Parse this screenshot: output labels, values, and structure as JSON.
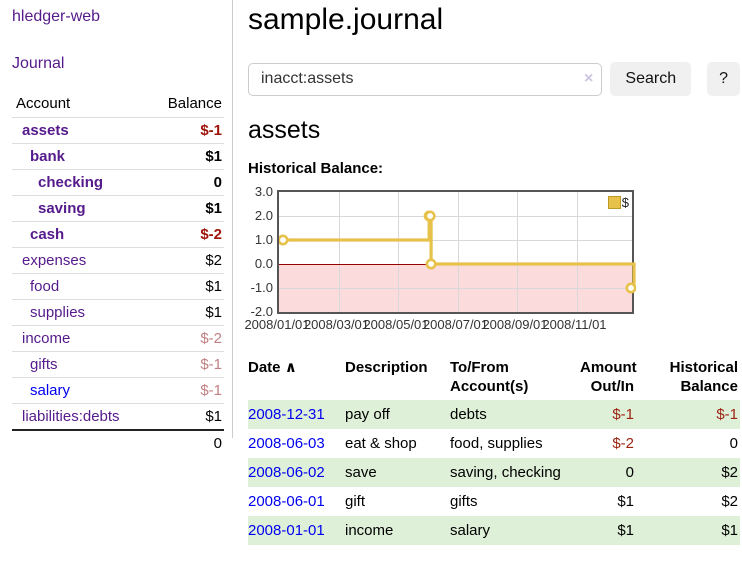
{
  "app": {
    "title": "hledger-web",
    "nav_journal": "Journal"
  },
  "sidebar": {
    "headers": {
      "account": "Account",
      "balance": "Balance"
    },
    "accounts": [
      {
        "name": "assets",
        "depth": 1,
        "bold": true,
        "balance": "$-1",
        "balance_style": "neg-strong"
      },
      {
        "name": "bank",
        "depth": 2,
        "bold": true,
        "balance": "$1",
        "balance_style": "pos"
      },
      {
        "name": "checking",
        "depth": 3,
        "bold": true,
        "balance": "0",
        "balance_style": "pos"
      },
      {
        "name": "saving",
        "depth": 3,
        "bold": true,
        "balance": "$1",
        "balance_style": "pos"
      },
      {
        "name": "cash",
        "depth": 2,
        "bold": true,
        "balance": "$-2",
        "balance_style": "neg-strong"
      },
      {
        "name": "expenses",
        "depth": 1,
        "bold": false,
        "balance": "$2",
        "balance_style": "pos"
      },
      {
        "name": "food",
        "depth": 2,
        "bold": false,
        "balance": "$1",
        "balance_style": "pos"
      },
      {
        "name": "supplies",
        "depth": 2,
        "bold": false,
        "balance": "$1",
        "balance_style": "pos"
      },
      {
        "name": "income",
        "depth": 1,
        "bold": false,
        "balance": "$-2",
        "balance_style": "neg-soft"
      },
      {
        "name": "gifts",
        "depth": 2,
        "bold": false,
        "balance": "$-1",
        "balance_style": "neg-soft"
      },
      {
        "name": "salary",
        "depth": 2,
        "bold": false,
        "balance": "$-1",
        "balance_style": "neg-soft",
        "link_state": "unvisited"
      },
      {
        "name": "liabilities:debts",
        "depth": 1,
        "bold": false,
        "balance": "$1",
        "balance_style": "pos"
      }
    ],
    "total": "0"
  },
  "header": {
    "journal_title": "sample.journal"
  },
  "search": {
    "value": "inacct:assets",
    "clear_icon": "×",
    "button_label": "Search",
    "help_label": "?"
  },
  "account_page": {
    "heading": "assets",
    "chart_label": "Historical Balance:"
  },
  "chart_data": {
    "type": "line",
    "title": "Historical Balance",
    "step": true,
    "series": [
      {
        "name": "$",
        "points": [
          {
            "date": "2008-01-01",
            "value": 1
          },
          {
            "date": "2008-06-01",
            "value": 2
          },
          {
            "date": "2008-06-02",
            "value": 2
          },
          {
            "date": "2008-06-03",
            "value": 0
          },
          {
            "date": "2008-12-31",
            "value": -1
          }
        ]
      }
    ],
    "x_range": [
      "2008-01-01",
      "2009-01-01"
    ],
    "x_ticks": [
      "2008/01/01",
      "2008/03/01",
      "2008/05/01",
      "2008/07/01",
      "2008/09/01",
      "2008/11/01"
    ],
    "y_ticks": [
      "3.0",
      "2.0",
      "1.0",
      "0.0",
      "-1.0",
      "-2.0"
    ],
    "ylim": [
      -2,
      3
    ],
    "grid": true,
    "negative_region_shaded": true,
    "legend": {
      "label": "$",
      "position": "top-right"
    },
    "colors": {
      "line": "#e7c24a",
      "marker_fill": "#ffffff",
      "negative_fill": "#fbdbdb",
      "zero_line": "#990000"
    }
  },
  "register": {
    "headers": {
      "date": "Date",
      "sort_indicator": "∧",
      "description": "Description",
      "accounts_line1": "To/From",
      "accounts_line2": "Account(s)",
      "amount_line1": "Amount",
      "amount_line2": "Out/In",
      "balance_line1": "Historical",
      "balance_line2": "Balance"
    },
    "rows": [
      {
        "date": "2008-12-31",
        "description": "pay off",
        "accounts": "debts",
        "amount": "$-1",
        "amount_neg": true,
        "balance": "$-1",
        "balance_neg": true
      },
      {
        "date": "2008-06-03",
        "description": "eat & shop",
        "accounts": "food, supplies",
        "amount": "$-2",
        "amount_neg": true,
        "balance": "0",
        "balance_neg": false
      },
      {
        "date": "2008-06-02",
        "description": "save",
        "accounts": "saving, checking",
        "amount": "0",
        "amount_neg": false,
        "balance": "$2",
        "balance_neg": false
      },
      {
        "date": "2008-06-01",
        "description": "gift",
        "accounts": "gifts",
        "amount": "$1",
        "amount_neg": false,
        "balance": "$2",
        "balance_neg": false
      },
      {
        "date": "2008-01-01",
        "description": "income",
        "accounts": "salary",
        "amount": "$1",
        "amount_neg": false,
        "balance": "$1",
        "balance_neg": false
      }
    ]
  }
}
